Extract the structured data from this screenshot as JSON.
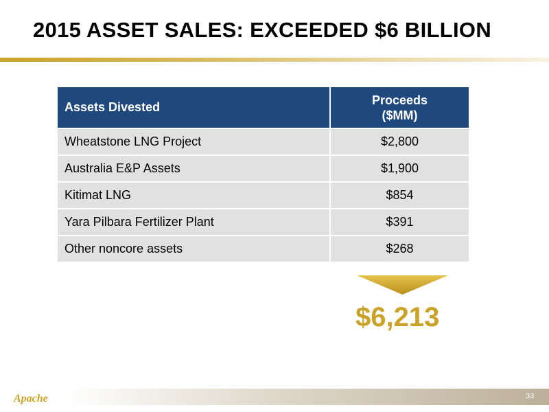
{
  "slide": {
    "title": "2015 ASSET SALES: EXCEEDED $6 BILLION",
    "page_number": "33",
    "logo_text": "Apache"
  },
  "table": {
    "headers": [
      "Assets Divested",
      "Proceeds",
      "($MM)"
    ],
    "rows": [
      {
        "asset": "Wheatstone LNG Project",
        "proceeds": "$2,800"
      },
      {
        "asset": "Australia E&P Assets",
        "proceeds": "$1,900"
      },
      {
        "asset": "Kitimat LNG",
        "proceeds": "$854"
      },
      {
        "asset": "Yara Pilbara Fertilizer Plant",
        "proceeds": "$391"
      },
      {
        "asset": "Other noncore assets",
        "proceeds": "$268"
      }
    ]
  },
  "total": {
    "value": "$6,213"
  },
  "colors": {
    "header_bg": "#1f497d",
    "row_bg": "#e1e1e1",
    "accent_gold": "#c9a227"
  }
}
